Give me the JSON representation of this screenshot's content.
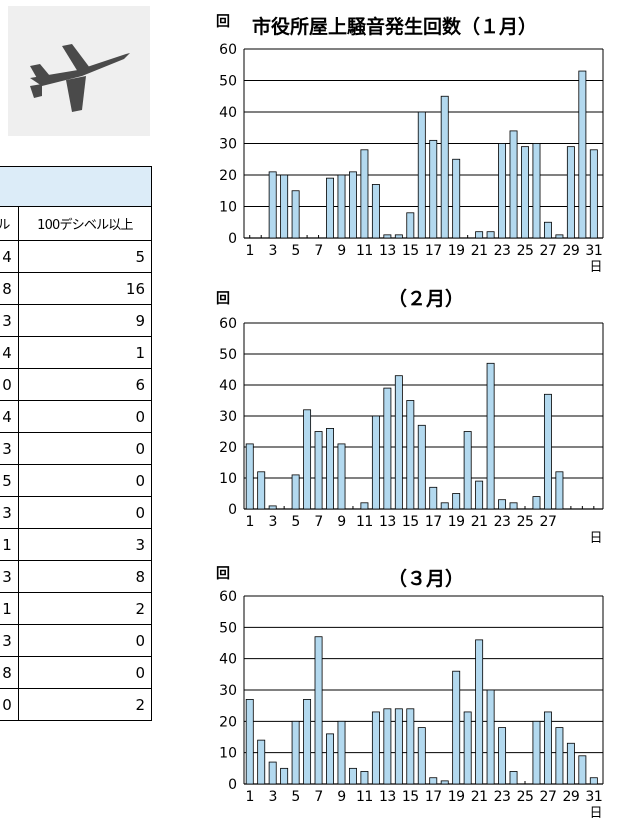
{
  "table": {
    "headers": [
      "ル",
      "100デシベル以上"
    ],
    "rows": [
      [
        "4",
        "5"
      ],
      [
        "8",
        "16"
      ],
      [
        "3",
        "9"
      ],
      [
        "4",
        "1"
      ],
      [
        "0",
        "6"
      ],
      [
        "4",
        "0"
      ],
      [
        "3",
        "0"
      ],
      [
        "5",
        "0"
      ],
      [
        "3",
        "0"
      ],
      [
        "1",
        "3"
      ],
      [
        "3",
        "8"
      ],
      [
        "1",
        "2"
      ],
      [
        "3",
        "0"
      ],
      [
        "8",
        "0"
      ],
      [
        "0",
        "2"
      ]
    ]
  },
  "colors": {
    "bar_fill": "#b3d9ef",
    "bar_stroke": "#000000",
    "table_header_bg": "#dcecf8"
  },
  "chart_data": [
    {
      "type": "bar",
      "title": "市役所屋上騒音発生回数（１月）",
      "ylabel": "回",
      "xlabel": "日",
      "ylim": [
        0,
        60
      ],
      "yticks": [
        0,
        10,
        20,
        30,
        40,
        50,
        60
      ],
      "xtick_labels": [
        "1",
        "3",
        "5",
        "7",
        "9",
        "11",
        "13",
        "15",
        "17",
        "19",
        "21",
        "23",
        "25",
        "27",
        "29",
        "31"
      ],
      "grid": true,
      "categories": [
        1,
        2,
        3,
        4,
        5,
        6,
        7,
        8,
        9,
        10,
        11,
        12,
        13,
        14,
        15,
        16,
        17,
        18,
        19,
        20,
        21,
        22,
        23,
        24,
        25,
        26,
        27,
        28,
        29,
        30,
        31
      ],
      "values": [
        0,
        0,
        21,
        20,
        15,
        0,
        0,
        19,
        20,
        21,
        28,
        17,
        1,
        1,
        8,
        40,
        31,
        45,
        25,
        0,
        2,
        2,
        30,
        34,
        29,
        30,
        5,
        1,
        29,
        53,
        28
      ]
    },
    {
      "type": "bar",
      "title": "（２月）",
      "ylabel": "回",
      "xlabel": "日",
      "ylim": [
        0,
        60
      ],
      "yticks": [
        0,
        10,
        20,
        30,
        40,
        50,
        60
      ],
      "xtick_labels": [
        "1",
        "3",
        "5",
        "7",
        "9",
        "11",
        "13",
        "15",
        "17",
        "19",
        "21",
        "23",
        "25",
        "27"
      ],
      "grid": true,
      "categories": [
        1,
        2,
        3,
        4,
        5,
        6,
        7,
        8,
        9,
        10,
        11,
        12,
        13,
        14,
        15,
        16,
        17,
        18,
        19,
        20,
        21,
        22,
        23,
        24,
        25,
        26,
        27,
        28,
        29,
        30,
        31
      ],
      "values": [
        21,
        12,
        1,
        0,
        11,
        32,
        25,
        26,
        21,
        0,
        2,
        30,
        39,
        43,
        35,
        27,
        7,
        2,
        5,
        25,
        9,
        47,
        3,
        2,
        0,
        4,
        37,
        12,
        0,
        0,
        0
      ]
    },
    {
      "type": "bar",
      "title": "（３月）",
      "ylabel": "回",
      "xlabel": "日",
      "ylim": [
        0,
        60
      ],
      "yticks": [
        0,
        10,
        20,
        30,
        40,
        50,
        60
      ],
      "xtick_labels": [
        "1",
        "3",
        "5",
        "7",
        "9",
        "11",
        "13",
        "15",
        "17",
        "19",
        "21",
        "23",
        "25",
        "27",
        "29",
        "31"
      ],
      "grid": true,
      "categories": [
        1,
        2,
        3,
        4,
        5,
        6,
        7,
        8,
        9,
        10,
        11,
        12,
        13,
        14,
        15,
        16,
        17,
        18,
        19,
        20,
        21,
        22,
        23,
        24,
        25,
        26,
        27,
        28,
        29,
        30,
        31
      ],
      "values": [
        27,
        14,
        7,
        5,
        20,
        27,
        47,
        16,
        20,
        5,
        4,
        23,
        24,
        24,
        24,
        18,
        2,
        1,
        36,
        23,
        46,
        30,
        18,
        4,
        0,
        20,
        23,
        18,
        13,
        9,
        2
      ]
    }
  ]
}
